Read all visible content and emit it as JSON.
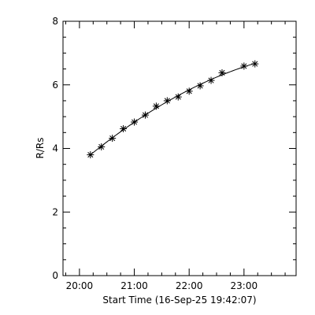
{
  "chart_data": {
    "type": "scatter",
    "title": "",
    "xlabel": "Start Time (16-Sep-25 19:42:07)",
    "ylabel": "R/Rs",
    "x_tick_labels": [
      "20:00",
      "21:00",
      "22:00",
      "23:00"
    ],
    "x_tick_values_hours": [
      20,
      21,
      22,
      23
    ],
    "y_tick_labels": [
      "0",
      "2",
      "4",
      "6",
      "8"
    ],
    "y_tick_values": [
      0,
      2,
      4,
      6,
      8
    ],
    "xlim_hours": [
      19.7,
      23.95
    ],
    "ylim": [
      0,
      8
    ],
    "grid": false,
    "series": [
      {
        "marker": "asterisk",
        "line": "fit-curve",
        "points": [
          {
            "t": "20:12",
            "y": 3.8
          },
          {
            "t": "20:24",
            "y": 4.05
          },
          {
            "t": "20:36",
            "y": 4.32
          },
          {
            "t": "20:48",
            "y": 4.62
          },
          {
            "t": "21:00",
            "y": 4.83
          },
          {
            "t": "21:12",
            "y": 5.05
          },
          {
            "t": "21:24",
            "y": 5.33
          },
          {
            "t": "21:36",
            "y": 5.5
          },
          {
            "t": "21:48",
            "y": 5.62
          },
          {
            "t": "22:00",
            "y": 5.8
          },
          {
            "t": "22:12",
            "y": 5.97
          },
          {
            "t": "22:24",
            "y": 6.14
          },
          {
            "t": "22:36",
            "y": 6.38
          },
          {
            "t": "23:00",
            "y": 6.59
          },
          {
            "t": "23:12",
            "y": 6.66
          }
        ]
      }
    ]
  }
}
